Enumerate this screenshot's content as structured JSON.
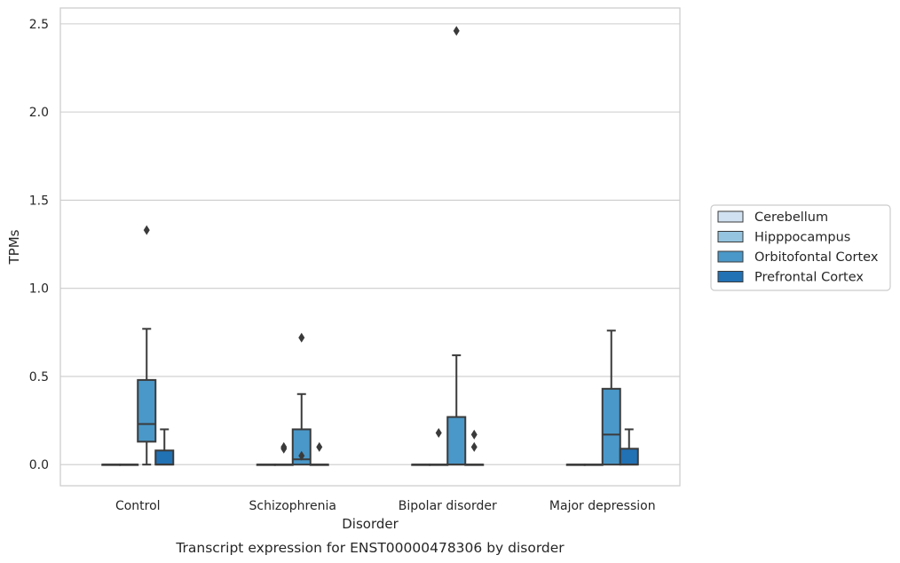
{
  "chart_data": {
    "type": "box",
    "caption": "Transcript expression for ENST00000478306 by disorder",
    "xlabel": "Disorder",
    "ylabel": "TPMs",
    "ylim": [
      -0.12,
      2.59
    ],
    "yticks": [
      "0.0",
      "0.5",
      "1.0",
      "1.5",
      "2.0",
      "2.5"
    ],
    "categories": [
      "Control",
      "Schizophrenia",
      "Bipolar disorder",
      "Major depression"
    ],
    "grid": true,
    "legend_position": "right",
    "series": [
      {
        "name": "Cerebellum",
        "color": "#d0e1f2",
        "boxes": [
          {
            "q1": 0,
            "median": 0,
            "q3": 0,
            "whisker_low": 0,
            "whisker_high": 0,
            "outliers": []
          },
          {
            "q1": 0,
            "median": 0,
            "q3": 0,
            "whisker_low": 0,
            "whisker_high": 0,
            "outliers": []
          },
          {
            "q1": 0,
            "median": 0,
            "q3": 0,
            "whisker_low": 0,
            "whisker_high": 0,
            "outliers": []
          },
          {
            "q1": 0,
            "median": 0,
            "q3": 0,
            "whisker_low": 0,
            "whisker_high": 0,
            "outliers": []
          }
        ]
      },
      {
        "name": "Hipppocampus",
        "color": "#94c4df",
        "boxes": [
          {
            "q1": 0,
            "median": 0,
            "q3": 0,
            "whisker_low": 0,
            "whisker_high": 0,
            "outliers": []
          },
          {
            "q1": 0,
            "median": 0,
            "q3": 0,
            "whisker_low": 0,
            "whisker_high": 0,
            "outliers": [
              0.09,
              0.1
            ]
          },
          {
            "q1": 0,
            "median": 0,
            "q3": 0,
            "whisker_low": 0,
            "whisker_high": 0,
            "outliers": [
              0.18
            ]
          },
          {
            "q1": 0,
            "median": 0,
            "q3": 0,
            "whisker_low": 0,
            "whisker_high": 0,
            "outliers": []
          }
        ]
      },
      {
        "name": "Orbitofontal Cortex",
        "color": "#4a98c9",
        "boxes": [
          {
            "q1": 0.13,
            "median": 0.23,
            "q3": 0.48,
            "whisker_low": 0,
            "whisker_high": 0.77,
            "outliers": [
              1.33
            ]
          },
          {
            "q1": 0,
            "median": 0.03,
            "q3": 0.2,
            "whisker_low": 0,
            "whisker_high": 0.4,
            "outliers": [
              0.05,
              0.72
            ]
          },
          {
            "q1": 0,
            "median": 0,
            "q3": 0.27,
            "whisker_low": 0,
            "whisker_high": 0.62,
            "outliers": [
              2.46
            ]
          },
          {
            "q1": 0,
            "median": 0.17,
            "q3": 0.43,
            "whisker_low": 0,
            "whisker_high": 0.76,
            "outliers": []
          }
        ]
      },
      {
        "name": "Prefrontal Cortex",
        "color": "#2171b5",
        "boxes": [
          {
            "q1": 0,
            "median": 0,
            "q3": 0.08,
            "whisker_low": 0,
            "whisker_high": 0.2,
            "outliers": []
          },
          {
            "q1": 0,
            "median": 0,
            "q3": 0,
            "whisker_low": 0,
            "whisker_high": 0,
            "outliers": [
              0.1
            ]
          },
          {
            "q1": 0,
            "median": 0,
            "q3": 0,
            "whisker_low": 0,
            "whisker_high": 0,
            "outliers": [
              0.1,
              0.17
            ]
          },
          {
            "q1": 0,
            "median": 0,
            "q3": 0.09,
            "whisker_low": 0,
            "whisker_high": 0.2,
            "outliers": []
          }
        ]
      }
    ]
  }
}
